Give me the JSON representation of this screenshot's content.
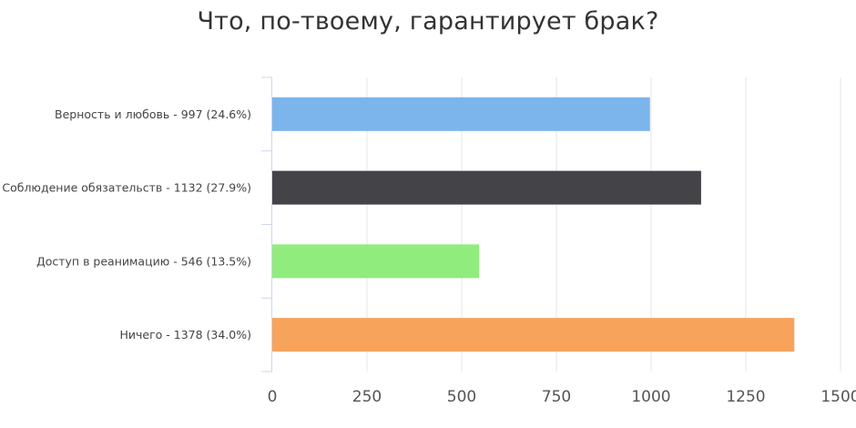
{
  "chart_data": {
    "type": "bar",
    "orientation": "horizontal",
    "title": "Что, по-твоему, гарантирует брак?",
    "xlabel": "",
    "ylabel": "",
    "categories": [
      "Верность и любовь - 997 (24.6%)",
      "Соблюдение обязательств - 1132 (27.9%)",
      "Доступ в реанимацию - 546 (13.5%)",
      "Ничего - 1378 (34.0%)"
    ],
    "values": [
      997,
      1132,
      546,
      1378
    ],
    "colors": [
      "#7cb5ec",
      "#434348",
      "#90ed7d",
      "#f7a35c"
    ],
    "xlim": [
      0,
      1500
    ],
    "xticks": [
      "0",
      "250",
      "500",
      "750",
      "1000",
      "1250",
      "1500"
    ],
    "xtick_values": [
      0,
      250,
      500,
      750,
      1000,
      1250,
      1500
    ],
    "grid": true,
    "legend": "none"
  }
}
